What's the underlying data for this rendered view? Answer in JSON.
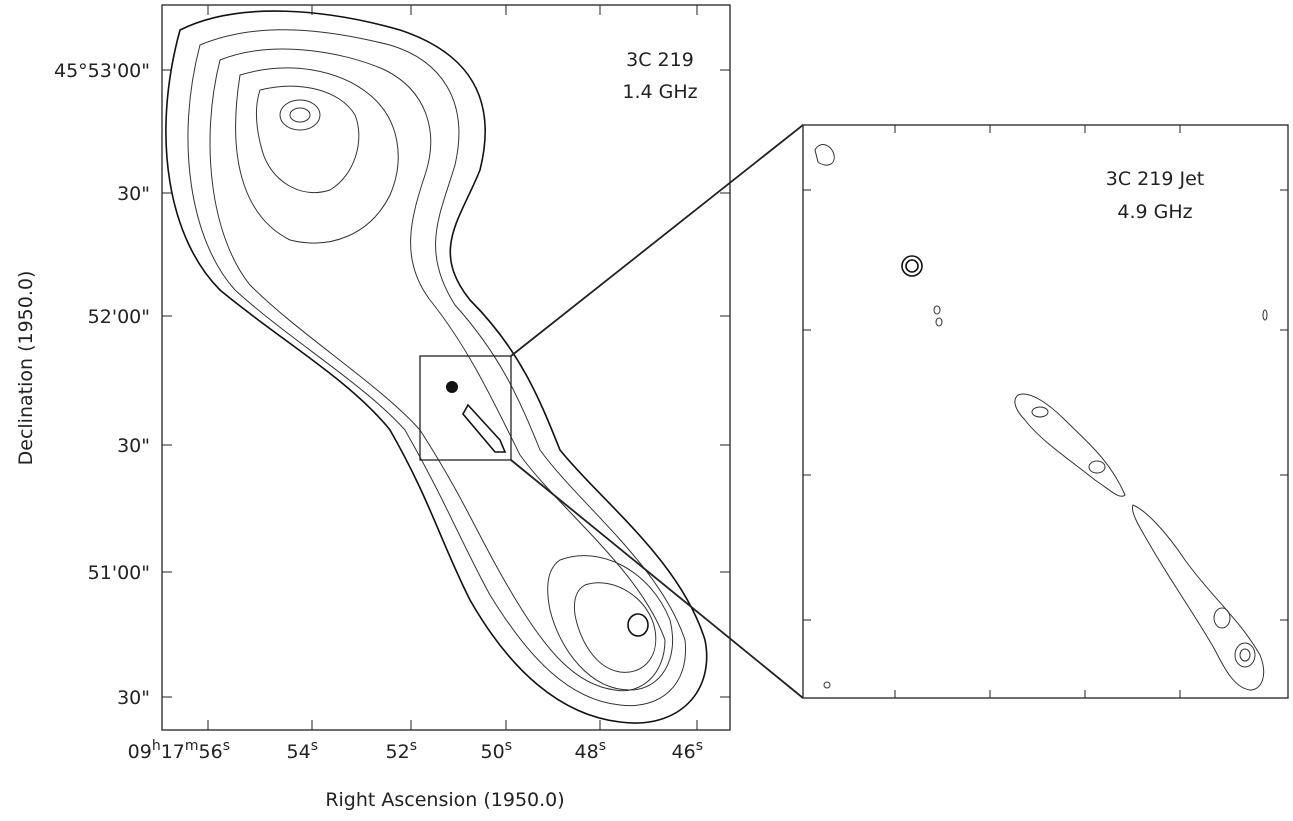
{
  "left_panel": {
    "title": "3C 219",
    "frequency": "1.4 GHz",
    "y_axis_label": "Declination (1950.0)",
    "x_axis_label": "Right Ascension (1950.0)",
    "y_ticks": [
      "45°53'00\"",
      "30\"",
      "52'00\"",
      "30\"",
      "51'00\"",
      "30\""
    ],
    "x_ticks": [
      [
        {
          "text": "09"
        },
        {
          "sup": "h"
        },
        {
          "text": "17"
        },
        {
          "sup": "m"
        },
        {
          "text": "56"
        },
        {
          "sup": "s"
        }
      ],
      [
        {
          "text": "54"
        },
        {
          "sup": "s"
        }
      ],
      [
        {
          "text": "52"
        },
        {
          "sup": "s"
        }
      ],
      [
        {
          "text": "50"
        },
        {
          "sup": "s"
        }
      ],
      [
        {
          "text": "48"
        },
        {
          "sup": "s"
        }
      ],
      [
        {
          "text": "46"
        },
        {
          "sup": "s"
        }
      ]
    ]
  },
  "right_panel": {
    "title": "3C 219 Jet",
    "frequency": "4.9 GHz"
  }
}
